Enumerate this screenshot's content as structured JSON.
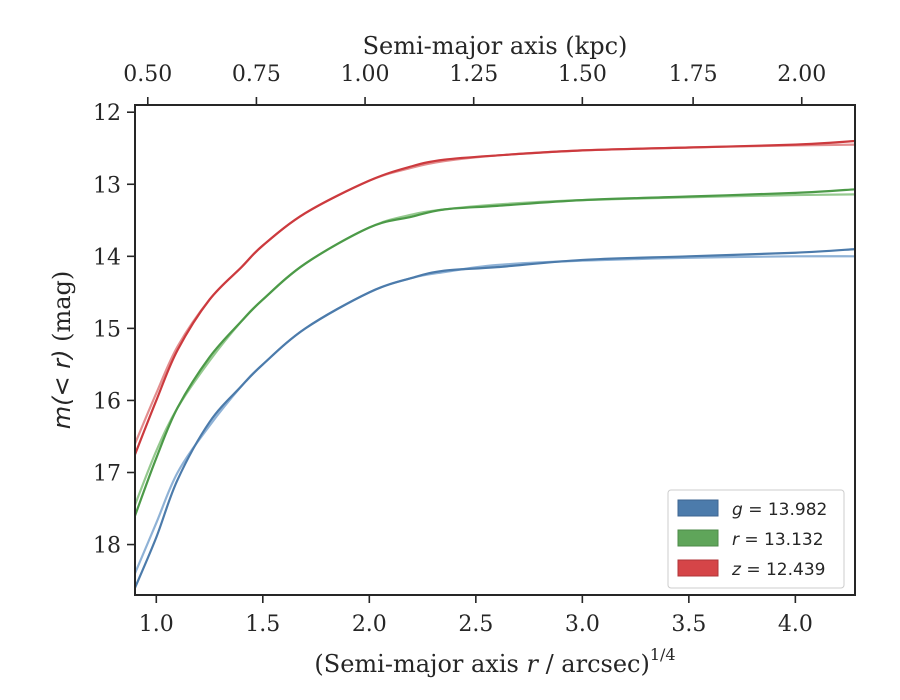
{
  "chart_data": {
    "type": "line",
    "xlabel": "(Semi-major axis r / arcsec)",
    "xlabel_prefix": "(Semi-major axis ",
    "xlabel_var": "r",
    "xlabel_suffix": " / arcsec)",
    "xlabel_power": "1/4",
    "x2label": "Semi-major axis (kpc)",
    "ylabel": "m(< r) (mag)",
    "ylabel_math": "m(< r)",
    "ylabel_unit": " (mag)",
    "xlim": [
      0.9,
      4.28
    ],
    "ylim": [
      18.7,
      11.9
    ],
    "y_inverted": true,
    "x_ticks": [
      "1.0",
      "1.5",
      "2.0",
      "2.5",
      "3.0",
      "3.5",
      "4.0"
    ],
    "x_tick_values": [
      1.0,
      1.5,
      2.0,
      2.5,
      3.0,
      3.5,
      4.0
    ],
    "y_ticks": [
      "12",
      "13",
      "14",
      "15",
      "16",
      "17",
      "18"
    ],
    "y_tick_values": [
      12,
      13,
      14,
      15,
      16,
      17,
      18
    ],
    "x2_ticks": [
      "0.50",
      "0.75",
      "1.00",
      "1.25",
      "1.50",
      "1.75",
      "2.00"
    ],
    "x2_tick_positions_x": [
      0.96,
      1.47,
      1.98,
      2.49,
      3.0,
      3.52,
      4.03
    ],
    "legend_position": "lower right",
    "series": [
      {
        "name": "g = 13.982",
        "label_var": "g",
        "label_value": "= 13.982",
        "color": "#4c7bab",
        "light_color": "#8fb2d6",
        "x": [
          0.9,
          1.0,
          1.1,
          1.25,
          1.4,
          1.5,
          1.7,
          2.0,
          2.2,
          2.35,
          2.6,
          3.0,
          3.5,
          4.0,
          4.28
        ],
        "values": [
          18.6,
          17.9,
          17.1,
          16.3,
          15.8,
          15.5,
          15.0,
          14.5,
          14.3,
          14.2,
          14.15,
          14.05,
          14.0,
          13.95,
          13.9
        ],
        "model": [
          18.4,
          17.7,
          17.0,
          16.35,
          15.8,
          15.5,
          15.0,
          14.5,
          14.3,
          14.22,
          14.12,
          14.06,
          14.02,
          14.0,
          14.0
        ]
      },
      {
        "name": "r = 13.132",
        "label_var": "r",
        "label_value": "= 13.132",
        "color": "#4c9a48",
        "light_color": "#95c98f",
        "x": [
          0.9,
          1.0,
          1.1,
          1.25,
          1.4,
          1.5,
          1.7,
          2.0,
          2.2,
          2.35,
          2.6,
          3.0,
          3.5,
          4.0,
          4.28
        ],
        "values": [
          17.6,
          16.8,
          16.1,
          15.4,
          14.9,
          14.6,
          14.1,
          13.6,
          13.45,
          13.35,
          13.3,
          13.22,
          13.17,
          13.12,
          13.07
        ],
        "model": [
          17.45,
          16.7,
          16.1,
          15.45,
          14.9,
          14.6,
          14.1,
          13.6,
          13.42,
          13.35,
          13.28,
          13.22,
          13.18,
          13.15,
          13.14
        ]
      },
      {
        "name": "z = 12.439",
        "label_var": "z",
        "label_value": "= 12.439",
        "color": "#cc3a3e",
        "light_color": "#e38e8f",
        "x": [
          0.9,
          1.0,
          1.1,
          1.25,
          1.4,
          1.5,
          1.7,
          2.0,
          2.2,
          2.35,
          2.6,
          3.0,
          3.5,
          4.0,
          4.28
        ],
        "values": [
          16.75,
          16.0,
          15.3,
          14.6,
          14.15,
          13.85,
          13.4,
          12.95,
          12.75,
          12.66,
          12.6,
          12.53,
          12.49,
          12.45,
          12.4
        ],
        "model": [
          16.6,
          15.9,
          15.25,
          14.6,
          14.15,
          13.85,
          13.4,
          12.95,
          12.77,
          12.68,
          12.6,
          12.53,
          12.49,
          12.46,
          12.45
        ]
      }
    ]
  }
}
